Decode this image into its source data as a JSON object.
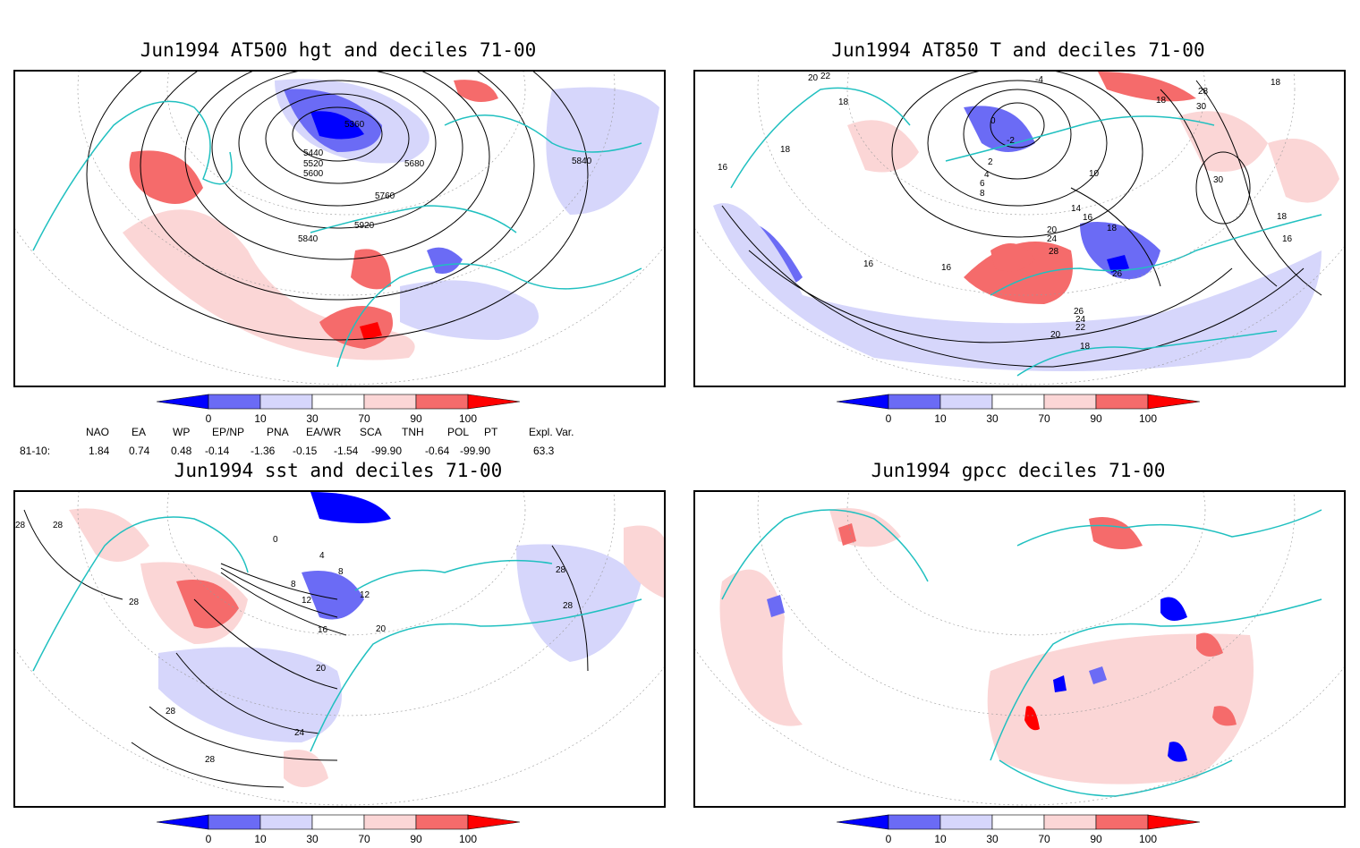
{
  "panels": [
    {
      "title": "Jun1994 AT500 hgt and deciles 71-00",
      "contour_labels": [
        "5360",
        "5440",
        "5520",
        "5600",
        "5680",
        "5760",
        "5840",
        "5840",
        "5920"
      ]
    },
    {
      "title": "Jun1994 AT850 T and deciles 71-00",
      "contour_labels": [
        "20",
        "22",
        "18",
        "18",
        "16",
        "-4",
        "0",
        "-2",
        "2",
        "4",
        "6",
        "8",
        "10",
        "14",
        "16",
        "18",
        "20",
        "24",
        "28",
        "26",
        "26",
        "24",
        "22",
        "20",
        "18",
        "16",
        "16",
        "18",
        "30",
        "30",
        "28",
        "16",
        "18",
        "18"
      ]
    },
    {
      "title": "Jun1994 sst and deciles 71-00",
      "contour_labels": [
        "28",
        "28",
        "28",
        "4",
        "8",
        "12",
        "16",
        "20",
        "24",
        "28",
        "28",
        "28",
        "20",
        "12",
        "0",
        "8",
        "28"
      ]
    },
    {
      "title": "Jun1994 gpcc deciles 71-00",
      "contour_labels": []
    }
  ],
  "colorbar": {
    "labels": [
      "0",
      "10",
      "30",
      "70",
      "90",
      "100"
    ],
    "colors": [
      "#0000ff",
      "#6b6bf5",
      "#d6d6fb",
      "#ffffff",
      "#fbd6d6",
      "#f56b6b",
      "#ff0000"
    ]
  },
  "indices": {
    "headers": [
      "NAO",
      "EA",
      "WP",
      "EP/NP",
      "PNA",
      "EA/WR",
      "SCA",
      "TNH",
      "POL",
      "PT",
      "Expl. Var."
    ],
    "row_label": "81-10:",
    "values": [
      "1.84",
      "0.74",
      "0.48",
      "-0.14",
      "-1.36",
      "-0.15",
      "-1.54",
      "-99.90",
      "-0.64",
      "-99.90",
      "63.3"
    ]
  }
}
